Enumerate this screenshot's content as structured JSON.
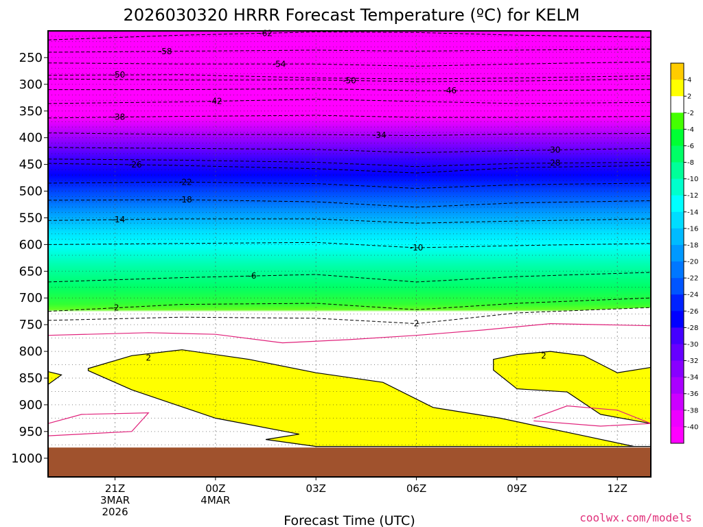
{
  "chart_data": {
    "type": "heatmap",
    "title": "2026030320 HRRR Forecast Temperature (ºC) for KELM",
    "xlabel": "Forecast Time (UTC)",
    "ylabel": "",
    "credit": "coolwx.com/models",
    "x_range_hours": [
      -1.0,
      17.0
    ],
    "y_range_hPa": [
      200,
      1035
    ],
    "x_ticks": [
      {
        "hour": 1,
        "lines": [
          "21Z",
          "3MAR",
          "2026"
        ]
      },
      {
        "hour": 4,
        "lines": [
          "00Z",
          "4MAR"
        ]
      },
      {
        "hour": 7,
        "lines": [
          "03Z"
        ]
      },
      {
        "hour": 10,
        "lines": [
          "06Z"
        ]
      },
      {
        "hour": 13,
        "lines": [
          "09Z"
        ]
      },
      {
        "hour": 16,
        "lines": [
          "12Z"
        ]
      }
    ],
    "y_ticks": [
      250,
      300,
      350,
      400,
      450,
      500,
      550,
      600,
      650,
      700,
      750,
      800,
      850,
      900,
      950,
      1000
    ],
    "dotted_levels": [
      210,
      220,
      230,
      240,
      250,
      260,
      270,
      280,
      290,
      300,
      310,
      320,
      330,
      340,
      350,
      360,
      370,
      380,
      390,
      400,
      410,
      420,
      430,
      440,
      450,
      460,
      470,
      480,
      490,
      500,
      510,
      520,
      530,
      540,
      550,
      560,
      570,
      580,
      590,
      600,
      620,
      650,
      680,
      700,
      730,
      750,
      775,
      800,
      825,
      850,
      875,
      900,
      925,
      950,
      975
    ],
    "ground_pressure_hPa": 980,
    "ground_color": "#a0522d",
    "colorbar": {
      "levels": [
        -40,
        -38,
        -36,
        -34,
        -32,
        -30,
        -28,
        -26,
        -24,
        -22,
        -20,
        -18,
        -16,
        -14,
        -12,
        -10,
        -8,
        -6,
        -4,
        -2,
        2,
        4
      ],
      "colors": [
        "#ff00ff",
        "#ee00ff",
        "#cc00ff",
        "#aa00ff",
        "#8800ff",
        "#6600ff",
        "#4400ff",
        "#0000ff",
        "#0022ff",
        "#0055ff",
        "#0077ff",
        "#0099ff",
        "#00bbff",
        "#00ddff",
        "#00ffff",
        "#00ffcc",
        "#00ff99",
        "#00ff66",
        "#00ff33",
        "#44ff00",
        "#ffffff",
        "#ffff00",
        "#ffcc00"
      ],
      "labels": [
        "4",
        "2",
        "-2",
        "-4",
        "-6",
        "-8",
        "-10",
        "-12",
        "-14",
        "-16",
        "-18",
        "-20",
        "-22",
        "-24",
        "-26",
        "-28",
        "-30",
        "-32",
        "-34",
        "-36",
        "-38",
        "-40"
      ]
    },
    "isotherms": [
      {
        "value": -62,
        "label": "-62",
        "pts": [
          [
            -1,
            217
          ],
          [
            3,
            208
          ],
          [
            7,
            202
          ],
          [
            10,
            203
          ],
          [
            13,
            208
          ],
          [
            17,
            212
          ]
        ],
        "label_hour": 5.5
      },
      {
        "value": -58,
        "label": "-58",
        "pts": [
          [
            -1,
            240
          ],
          [
            3,
            238
          ],
          [
            7,
            236
          ],
          [
            10,
            238
          ],
          [
            13,
            236
          ],
          [
            17,
            234
          ]
        ],
        "label_hour": 2.5
      },
      {
        "value": -54,
        "label": "-54",
        "pts": [
          [
            -1,
            260
          ],
          [
            3,
            262
          ],
          [
            7,
            262
          ],
          [
            10,
            266
          ],
          [
            13,
            262
          ],
          [
            17,
            258
          ]
        ],
        "label_hour": 5.9
      },
      {
        "value": -50,
        "label": "-50",
        "pts": [
          [
            -1,
            283
          ],
          [
            3,
            282
          ],
          [
            7,
            288
          ],
          [
            10,
            290
          ],
          [
            13,
            288
          ],
          [
            17,
            284
          ]
        ],
        "label_hour": 1.1
      },
      {
        "value": -50,
        "label": "-50",
        "pts": [
          [
            -1,
            290
          ],
          [
            3,
            292
          ],
          [
            7,
            292
          ],
          [
            10,
            295
          ],
          [
            13,
            294
          ],
          [
            17,
            290
          ]
        ],
        "label_hour": 8.0
      },
      {
        "value": -46,
        "label": "-46",
        "pts": [
          [
            -1,
            310
          ],
          [
            3,
            310
          ],
          [
            7,
            308
          ],
          [
            10,
            312
          ],
          [
            13,
            312
          ],
          [
            17,
            310
          ]
        ],
        "label_hour": 11.0
      },
      {
        "value": -42,
        "label": "-42",
        "pts": [
          [
            -1,
            336
          ],
          [
            3,
            333
          ],
          [
            7,
            328
          ],
          [
            10,
            332
          ],
          [
            13,
            336
          ],
          [
            17,
            334
          ]
        ],
        "label_hour": 4.0
      },
      {
        "value": -38,
        "label": "-38",
        "pts": [
          [
            -1,
            363
          ],
          [
            3,
            360
          ],
          [
            7,
            358
          ],
          [
            10,
            362
          ],
          [
            13,
            362
          ],
          [
            17,
            360
          ]
        ],
        "label_hour": 1.1
      },
      {
        "value": -34,
        "label": "-34",
        "pts": [
          [
            -1,
            391
          ],
          [
            3,
            394
          ],
          [
            7,
            394
          ],
          [
            10,
            396
          ],
          [
            13,
            393
          ],
          [
            17,
            392
          ]
        ],
        "label_hour": 8.9
      },
      {
        "value": -30,
        "label": "-30",
        "pts": [
          [
            -1,
            418
          ],
          [
            3,
            420
          ],
          [
            7,
            422
          ],
          [
            10,
            428
          ],
          [
            13,
            424
          ],
          [
            17,
            420
          ]
        ],
        "label_hour": 14.1
      },
      {
        "value": -28,
        "label": "-28",
        "pts": [
          [
            -1,
            440
          ],
          [
            3,
            442
          ],
          [
            7,
            446
          ],
          [
            10,
            454
          ],
          [
            13,
            448
          ],
          [
            17,
            446
          ]
        ],
        "label_hour": 14.1
      },
      {
        "value": -26,
        "label": "-26",
        "pts": [
          [
            -1,
            448
          ],
          [
            3,
            452
          ],
          [
            7,
            458
          ],
          [
            10,
            466
          ],
          [
            13,
            456
          ],
          [
            17,
            452
          ]
        ],
        "label_hour": 1.6
      },
      {
        "value": -22,
        "label": "-22",
        "pts": [
          [
            -1,
            485
          ],
          [
            3,
            483
          ],
          [
            7,
            486
          ],
          [
            10,
            495
          ],
          [
            13,
            488
          ],
          [
            17,
            485
          ]
        ],
        "label_hour": 3.1
      },
      {
        "value": -18,
        "label": "-18",
        "pts": [
          [
            -1,
            517
          ],
          [
            3,
            516
          ],
          [
            7,
            520
          ],
          [
            10,
            530
          ],
          [
            13,
            522
          ],
          [
            17,
            518
          ]
        ],
        "label_hour": 3.1
      },
      {
        "value": -14,
        "label": "-14",
        "pts": [
          [
            -1,
            555
          ],
          [
            3,
            552
          ],
          [
            7,
            552
          ],
          [
            10,
            560
          ],
          [
            13,
            556
          ],
          [
            17,
            552
          ]
        ],
        "label_hour": 1.1
      },
      {
        "value": -10,
        "label": "-10",
        "pts": [
          [
            -1,
            600
          ],
          [
            3,
            598
          ],
          [
            7,
            596
          ],
          [
            10,
            606
          ],
          [
            13,
            602
          ],
          [
            17,
            598
          ]
        ],
        "label_hour": 10.0
      },
      {
        "value": -6,
        "label": "-6",
        "pts": [
          [
            -1,
            670
          ],
          [
            3,
            662
          ],
          [
            7,
            656
          ],
          [
            10,
            670
          ],
          [
            13,
            660
          ],
          [
            17,
            652
          ]
        ],
        "label_hour": 5.1
      },
      {
        "value": -2,
        "label": "-2",
        "pts": [
          [
            -1,
            725
          ],
          [
            3,
            712
          ],
          [
            7,
            710
          ],
          [
            10,
            722
          ],
          [
            13,
            710
          ],
          [
            17,
            700
          ]
        ],
        "label_hour": 1.0
      }
    ],
    "zero_line": {
      "value": 2,
      "label": "2",
      "pts": [
        [
          -1,
          742
        ],
        [
          3,
          736
        ],
        [
          7,
          738
        ],
        [
          10,
          748
        ],
        [
          13,
          728
        ],
        [
          17,
          718
        ]
      ],
      "label_hour": 10.0
    },
    "warm_regions": [
      {
        "label": "2",
        "label_pt": [
          2.0,
          812
        ],
        "pts": [
          [
            0.2,
            832
          ],
          [
            1.5,
            808
          ],
          [
            3.0,
            797
          ],
          [
            5.0,
            815
          ],
          [
            7.0,
            840
          ],
          [
            9.0,
            858
          ],
          [
            10.5,
            905
          ],
          [
            12.5,
            925
          ],
          [
            15.0,
            958
          ],
          [
            16.5,
            978
          ],
          [
            17,
            978
          ],
          [
            17,
            978
          ],
          [
            7.0,
            978
          ],
          [
            5.5,
            965
          ],
          [
            6.5,
            955
          ],
          [
            4.0,
            925
          ],
          [
            1.5,
            872
          ],
          [
            0.2,
            836
          ]
        ]
      },
      {
        "label": "2",
        "label_pt": [
          13.8,
          808
        ],
        "pts": [
          [
            12.3,
            815
          ],
          [
            13.0,
            806
          ],
          [
            14.0,
            800
          ],
          [
            15.0,
            808
          ],
          [
            16.0,
            840
          ],
          [
            17,
            830
          ],
          [
            17,
            935
          ],
          [
            15.5,
            918
          ],
          [
            14.5,
            876
          ],
          [
            13.0,
            870
          ],
          [
            12.3,
            835
          ]
        ]
      },
      {
        "label": "",
        "label_pt": null,
        "pts": [
          [
            -1,
            838
          ],
          [
            -0.6,
            844
          ],
          [
            -1,
            862
          ]
        ]
      }
    ],
    "pink_lines": [
      {
        "pts": [
          [
            -1,
            770
          ],
          [
            2,
            765
          ],
          [
            4,
            768
          ],
          [
            6,
            784
          ],
          [
            8,
            778
          ],
          [
            10,
            770
          ],
          [
            12,
            760
          ],
          [
            14,
            748
          ],
          [
            17,
            752
          ]
        ]
      },
      {
        "pts": [
          [
            -1,
            935
          ],
          [
            0,
            918
          ],
          [
            2,
            915
          ],
          [
            1.5,
            950
          ],
          [
            -1,
            958
          ]
        ]
      },
      {
        "pts": [
          [
            13.5,
            925
          ],
          [
            14.5,
            902
          ],
          [
            16,
            910
          ],
          [
            17,
            935
          ],
          [
            15.5,
            940
          ],
          [
            13.5,
            930
          ]
        ]
      }
    ]
  }
}
